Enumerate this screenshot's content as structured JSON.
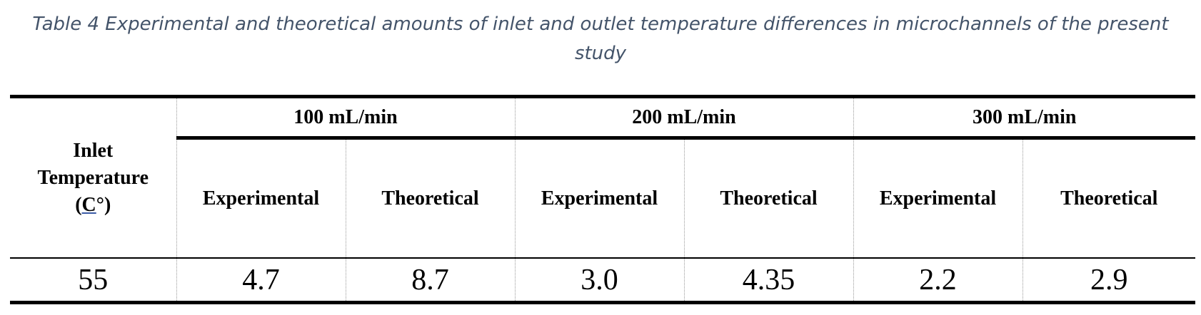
{
  "caption": {
    "line1": "Table 4 Experimental and theoretical amounts of inlet and outlet temperature differences in microchannels of the present",
    "line2": "study"
  },
  "table": {
    "inlet_header": {
      "line1": "Inlet",
      "line2": "Temperature",
      "open_paren": "(",
      "unit": "C",
      "unit_suffix": "°)"
    },
    "groups": [
      "100 mL/min",
      "200 mL/min",
      "300 mL/min"
    ],
    "subheaders": [
      "Experimental",
      "Theoretical",
      "Experimental",
      "Theoretical",
      "Experimental",
      "Theoretical"
    ],
    "rows": [
      [
        "55",
        "4.7",
        "8.7",
        "3.0",
        "4.35",
        "2.2",
        "2.9"
      ]
    ]
  }
}
